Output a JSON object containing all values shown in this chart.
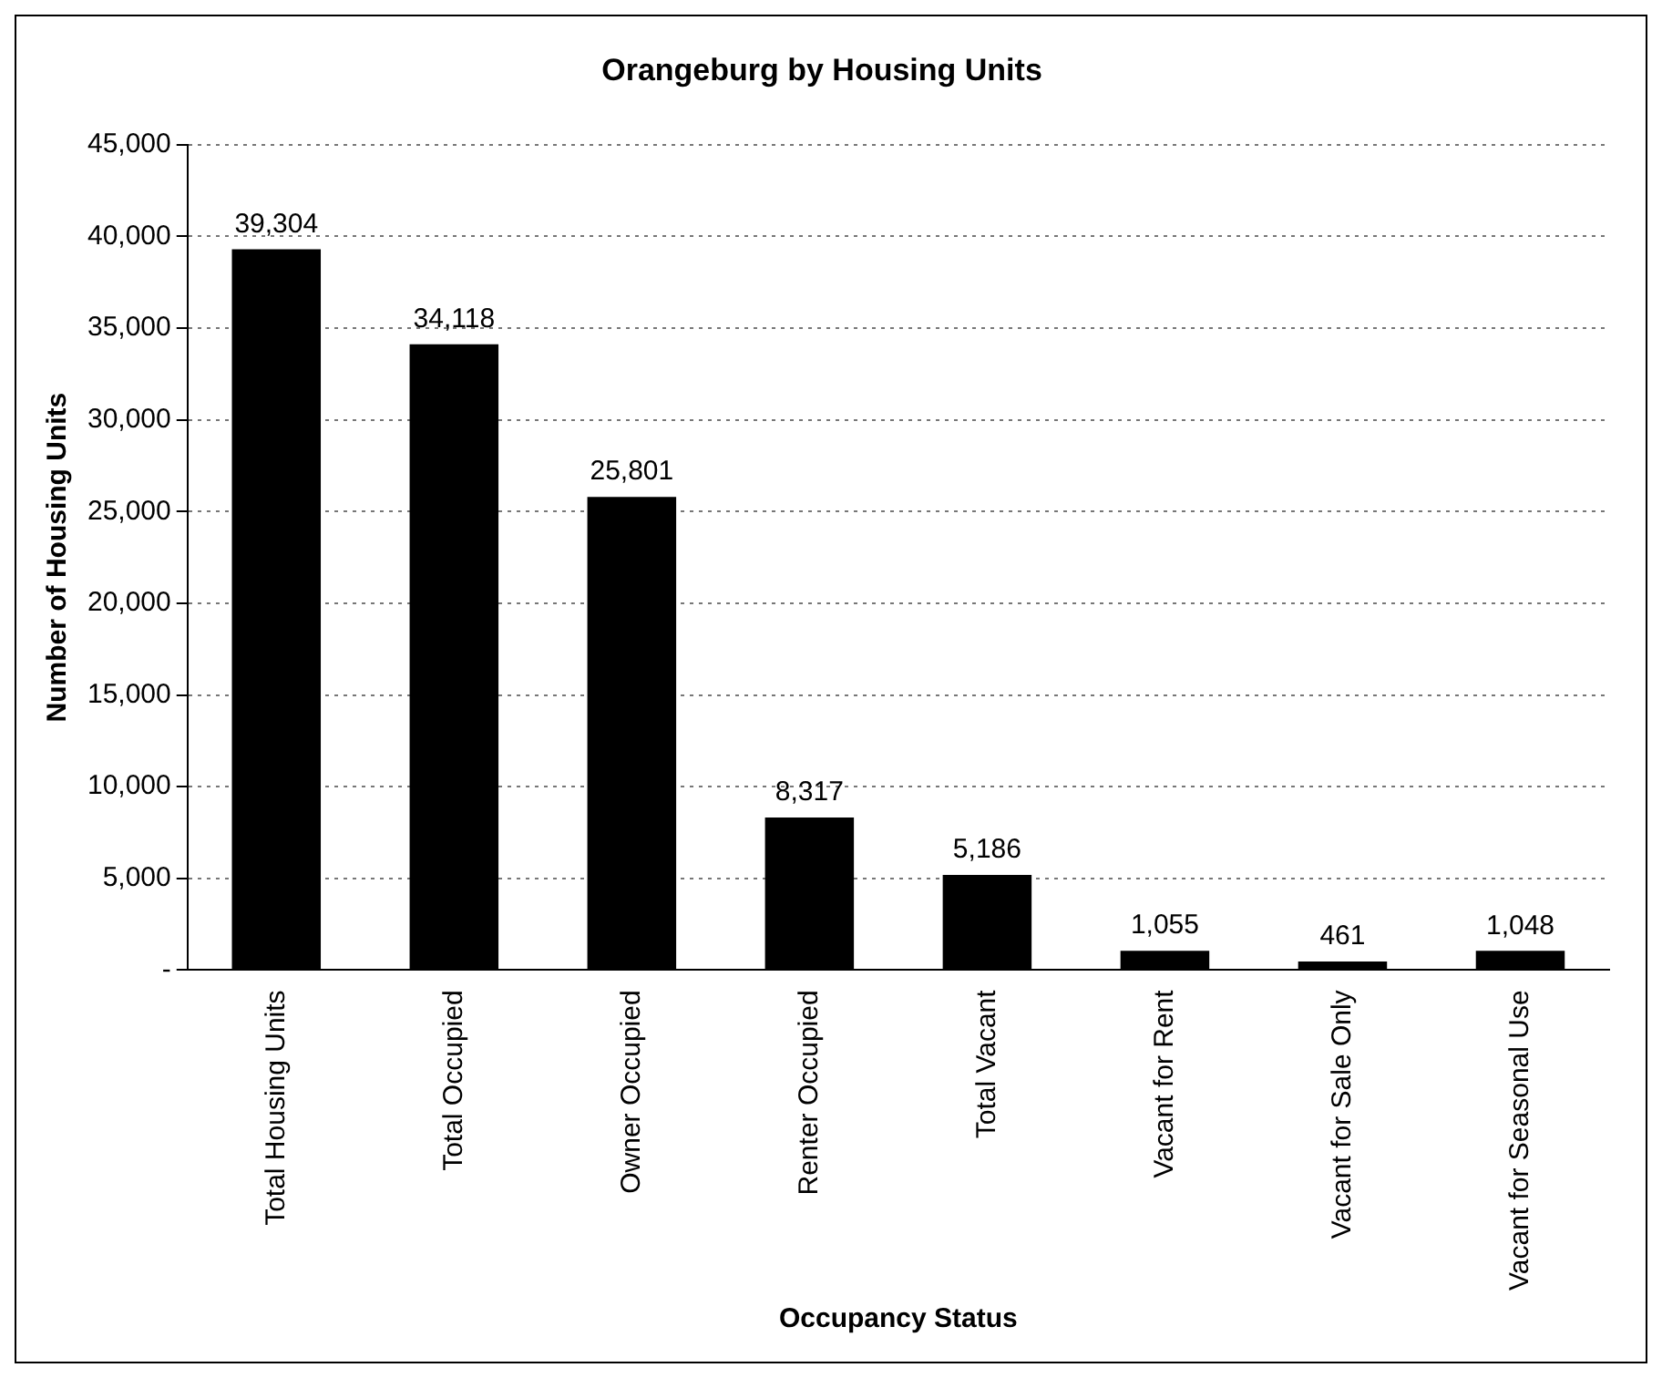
{
  "chart_data": {
    "type": "bar",
    "title": "Orangeburg by Housing Units",
    "xlabel": "Occupancy Status",
    "ylabel": "Number of Housing Units",
    "categories": [
      "Total Housing Units",
      "Total Occupied",
      "Owner Occupied",
      "Renter Occupied",
      "Total Vacant",
      "Vacant for Rent",
      "Vacant for Sale Only",
      "Vacant for Seasonal Use"
    ],
    "values": [
      39304,
      34118,
      25801,
      8317,
      5186,
      1055,
      461,
      1048
    ],
    "value_labels": [
      "39,304",
      "34,118",
      "25,801",
      "8,317",
      "5,186",
      "1,055",
      "461",
      "1,048"
    ],
    "color": "#000000",
    "ylim": [
      0,
      45000
    ],
    "yticks": [
      {
        "value": 0,
        "label": "-"
      },
      {
        "value": 5000,
        "label": "5,000"
      },
      {
        "value": 10000,
        "label": "10,000"
      },
      {
        "value": 15000,
        "label": "15,000"
      },
      {
        "value": 20000,
        "label": "20,000"
      },
      {
        "value": 25000,
        "label": "25,000"
      },
      {
        "value": 30000,
        "label": "30,000"
      },
      {
        "value": 35000,
        "label": "35,000"
      },
      {
        "value": 40000,
        "label": "40,000"
      },
      {
        "value": 45000,
        "label": "45,000"
      }
    ],
    "grid": "y",
    "line_style": "dotted",
    "legend": false
  }
}
